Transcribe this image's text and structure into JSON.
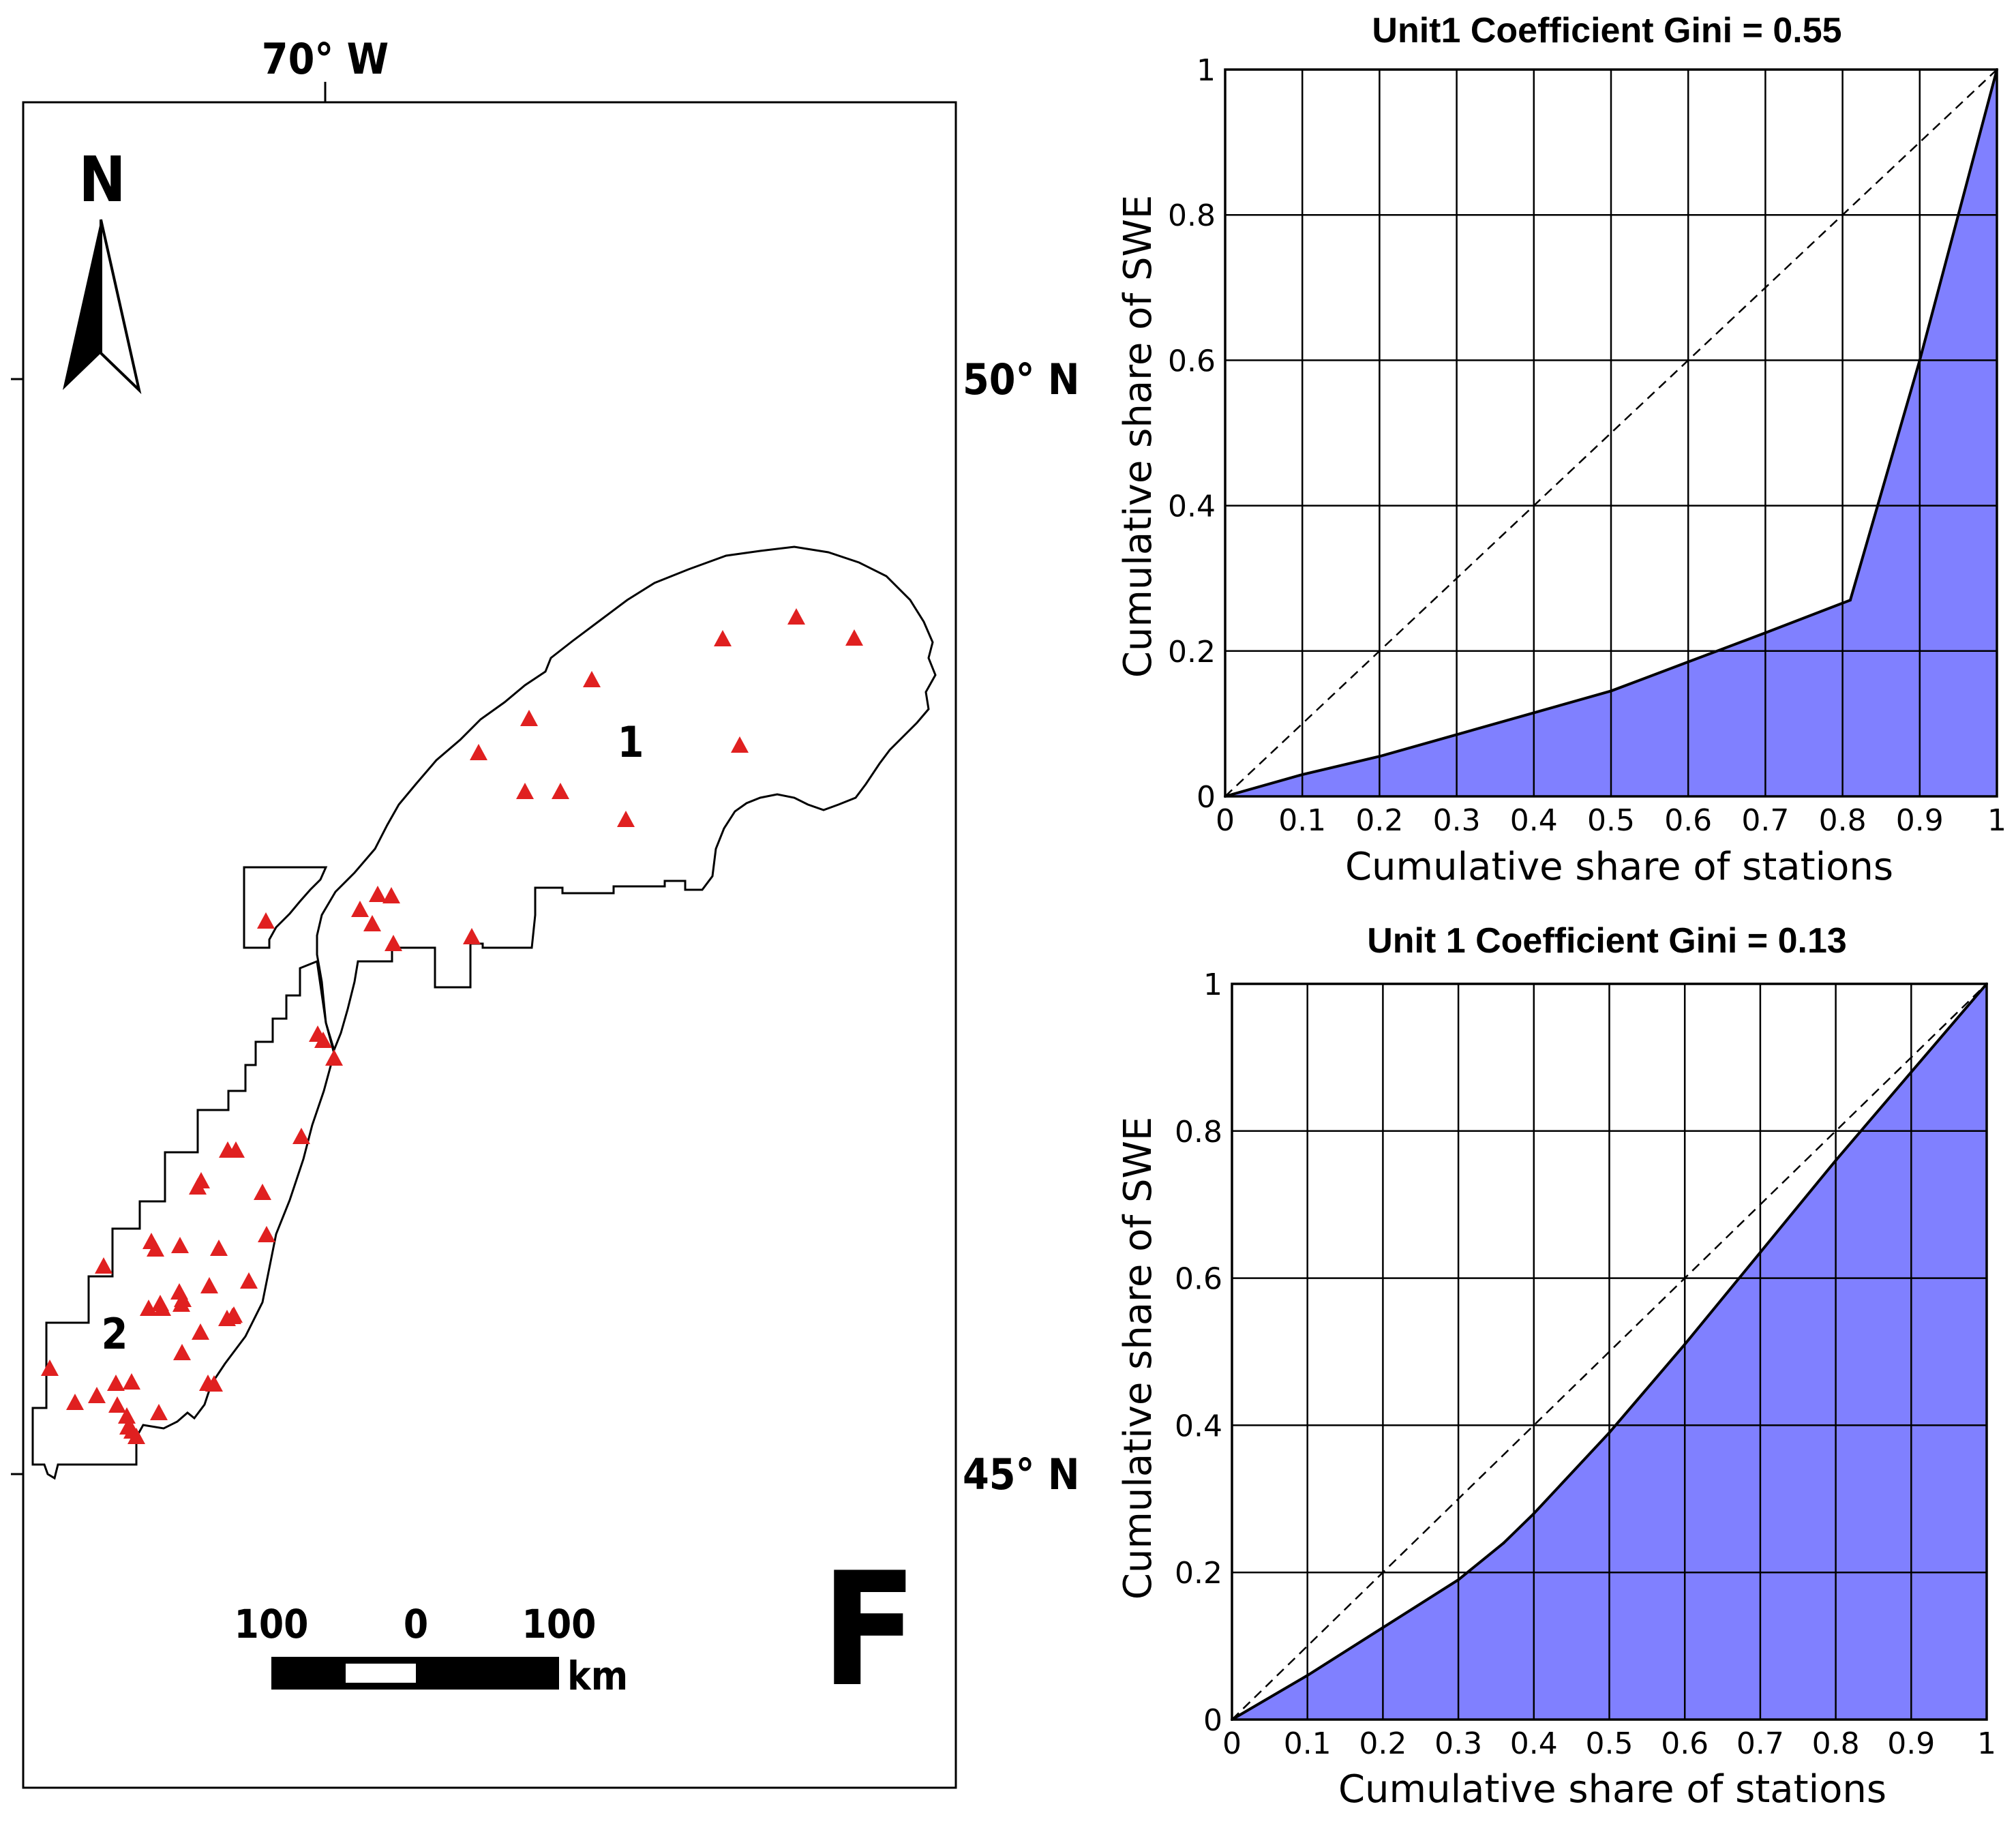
{
  "figure_label": "F",
  "map": {
    "longitude_label": "70° W",
    "latitudes": [
      {
        "label": "50° N"
      },
      {
        "label": "45° N"
      }
    ],
    "north_arrow_label": "N",
    "region_labels": [
      "1",
      "2"
    ],
    "scale_bar": {
      "left": "100",
      "center": "0",
      "right": "100",
      "unit": "km"
    },
    "station_color": "#e02020"
  },
  "chart_data": [
    {
      "type": "area",
      "title": "Unit1 Coefficient Gini = 0.55",
      "xlabel": "Cumulative share of stations",
      "ylabel": "Cumulative share of SWE",
      "xlim": [
        0,
        1
      ],
      "ylim": [
        0,
        1
      ],
      "xticks": [
        "0",
        "0.1",
        "0.2",
        "0.3",
        "0.4",
        "0.5",
        "0.6",
        "0.7",
        "0.8",
        "0.9",
        "1"
      ],
      "yticks": [
        "0",
        "0.2",
        "0.4",
        "0.6",
        "0.8",
        "1"
      ],
      "grid": true,
      "fill_color": "#8080ff",
      "series": [
        {
          "name": "Lorenz curve",
          "x": [
            0,
            0.1,
            0.2,
            0.3,
            0.4,
            0.5,
            0.6,
            0.7,
            0.81,
            0.9,
            1.0
          ],
          "y": [
            0,
            0.03,
            0.055,
            0.085,
            0.115,
            0.145,
            0.185,
            0.225,
            0.27,
            0.6,
            1.0
          ]
        },
        {
          "name": "Line of equality",
          "x": [
            0,
            1
          ],
          "y": [
            0,
            1
          ]
        }
      ]
    },
    {
      "type": "area",
      "title": "Unit 1 Coefficient Gini = 0.13",
      "xlabel": "Cumulative share of stations",
      "ylabel": "Cumulative share of SWE",
      "xlim": [
        0,
        1
      ],
      "ylim": [
        0,
        1
      ],
      "xticks": [
        "0",
        "0.1",
        "0.2",
        "0.3",
        "0.4",
        "0.5",
        "0.6",
        "0.7",
        "0.8",
        "0.9",
        "1"
      ],
      "yticks": [
        "0",
        "0.2",
        "0.4",
        "0.6",
        "0.8",
        "1"
      ],
      "grid": true,
      "fill_color": "#8080ff",
      "series": [
        {
          "name": "Lorenz curve",
          "x": [
            0,
            0.1,
            0.2,
            0.3,
            0.36,
            0.4,
            0.5,
            0.6,
            0.7,
            0.8,
            0.9,
            1.0
          ],
          "y": [
            0,
            0.06,
            0.125,
            0.19,
            0.24,
            0.28,
            0.39,
            0.51,
            0.635,
            0.76,
            0.88,
            1.0
          ]
        },
        {
          "name": "Line of equality",
          "x": [
            0,
            1
          ],
          "y": [
            0,
            1
          ]
        }
      ]
    }
  ]
}
